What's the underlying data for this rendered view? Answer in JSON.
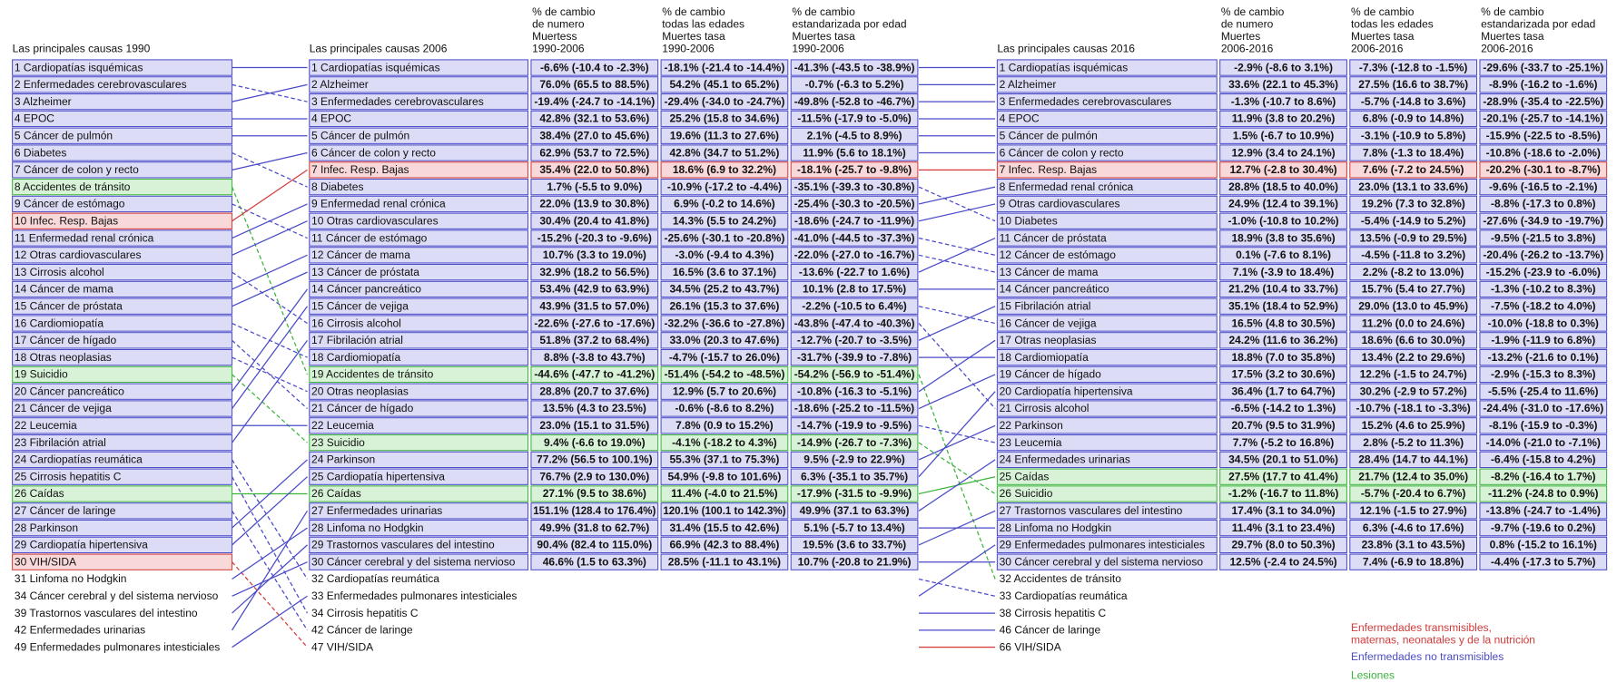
{
  "lists": [
    {
      "title": "Las principales causas 1990",
      "items": [
        {
          "label": "1 Cardiopatías isquémicas",
          "group": 1
        },
        {
          "label": "2 Enfermedades cerebrovasculares",
          "group": 1
        },
        {
          "label": "3 Alzheimer",
          "group": 1
        },
        {
          "label": "4 EPOC",
          "group": 1
        },
        {
          "label": "5 Cáncer de pulmón",
          "group": 1
        },
        {
          "label": "6 Diabetes",
          "group": 1
        },
        {
          "label": "7 Cáncer de colon y recto",
          "group": 1
        },
        {
          "label": "8 Accidentes de tránsito",
          "group": 2
        },
        {
          "label": "9 Cáncer de estómago",
          "group": 1
        },
        {
          "label": "10 Infec. Resp. Bajas",
          "group": 0
        },
        {
          "label": "11 Enfermedad renal crónica",
          "group": 1
        },
        {
          "label": "12 Otras cardiovasculares",
          "group": 1
        },
        {
          "label": "13 Cirrosis alcohol",
          "group": 1
        },
        {
          "label": "14 Cáncer de mama",
          "group": 1
        },
        {
          "label": "15 Cáncer de próstata",
          "group": 1
        },
        {
          "label": "16 Cardiomiopatía",
          "group": 1
        },
        {
          "label": "17 Cáncer de hígado",
          "group": 1
        },
        {
          "label": "18 Otras neoplasias",
          "group": 1
        },
        {
          "label": "19 Suicidio",
          "group": 2
        },
        {
          "label": "20 Cáncer pancreático",
          "group": 1
        },
        {
          "label": "21 Cáncer de vejiga",
          "group": 1
        },
        {
          "label": "22 Leucemia",
          "group": 1
        },
        {
          "label": "23 Fibrilación atrial",
          "group": 1
        },
        {
          "label": "24 Cardiopatías reumática",
          "group": 1
        },
        {
          "label": "25 Cirrosis hepatitis C",
          "group": 1
        },
        {
          "label": "26 Caídas",
          "group": 2
        },
        {
          "label": "27 Cáncer de laringe",
          "group": 1
        },
        {
          "label": "28 Parkinson",
          "group": 1
        },
        {
          "label": "29 Cardiopatía hipertensiva",
          "group": 1
        },
        {
          "label": "30 VIH/SIDA",
          "group": 0
        },
        {
          "label": "31 Linfoma no Hodgkin",
          "group": 1
        },
        {
          "label": "34 Cáncer cerebral y del sistema nervioso",
          "group": 1
        },
        {
          "label": "39 Trastornos vasculares del intestino",
          "group": 1
        },
        {
          "label": "42 Enfermedades urinarias",
          "group": 1
        },
        {
          "label": "49 Enfermedades pulmonares intesticiales",
          "group": 1
        }
      ]
    },
    {
      "title": "Las principales causas 2006",
      "items": [
        {
          "label": "1 Cardiopatías isquémicas",
          "group": 1
        },
        {
          "label": "2 Alzheimer",
          "group": 1
        },
        {
          "label": "3 Enfermedades cerebrovasculares",
          "group": 1
        },
        {
          "label": "4 EPOC",
          "group": 1
        },
        {
          "label": "5 Cáncer de pulmón",
          "group": 1
        },
        {
          "label": "6 Cáncer de colon y recto",
          "group": 1
        },
        {
          "label": "7 Infec. Resp. Bajas",
          "group": 0
        },
        {
          "label": "8 Diabetes",
          "group": 1
        },
        {
          "label": "9 Enfermedad renal crónica",
          "group": 1
        },
        {
          "label": "10 Otras cardiovasculares",
          "group": 1
        },
        {
          "label": "11 Cáncer de estómago",
          "group": 1
        },
        {
          "label": "12 Cáncer de mama",
          "group": 1
        },
        {
          "label": "13 Cáncer de próstata",
          "group": 1
        },
        {
          "label": "14 Cáncer pancreático",
          "group": 1
        },
        {
          "label": "15 Cáncer de vejiga",
          "group": 1
        },
        {
          "label": "16 Cirrosis alcohol",
          "group": 1
        },
        {
          "label": "17 Fibrilación atrial",
          "group": 1
        },
        {
          "label": "18 Cardiomiopatía",
          "group": 1
        },
        {
          "label": "19 Accidentes de tránsito",
          "group": 2
        },
        {
          "label": "20 Otras neoplasias",
          "group": 1
        },
        {
          "label": "21 Cáncer de hígado",
          "group": 1
        },
        {
          "label": "22 Leucemia",
          "group": 1
        },
        {
          "label": "23 Suicidio",
          "group": 2
        },
        {
          "label": "24 Parkinson",
          "group": 1
        },
        {
          "label": "25 Cardiopatía hipertensiva",
          "group": 1
        },
        {
          "label": "26 Caídas",
          "group": 2
        },
        {
          "label": "27 Enfermedades urinarias",
          "group": 1
        },
        {
          "label": "28 Linfoma no Hodgkin",
          "group": 1
        },
        {
          "label": "29 Trastornos vasculares del intestino",
          "group": 1
        },
        {
          "label": "30 Cáncer cerebral y del sistema nervioso",
          "group": 1
        },
        {
          "label": "32 Cardiopatías reumática",
          "group": 1
        },
        {
          "label": "33 Enfermedades pulmonares intesticiales",
          "group": 1
        },
        {
          "label": "34 Cirrosis hepatitis C",
          "group": 1
        },
        {
          "label": "42 Cáncer de laringe",
          "group": 1
        },
        {
          "label": "47 VIH/SIDA",
          "group": 0
        }
      ]
    },
    {
      "title": "Las principales causas 2016",
      "items": [
        {
          "label": "1 Cardiopatías isquémicas",
          "group": 1
        },
        {
          "label": "2 Alzheimer",
          "group": 1
        },
        {
          "label": "3 Enfermedades cerebrovasculares",
          "group": 1
        },
        {
          "label": "4 EPOC",
          "group": 1
        },
        {
          "label": "5 Cáncer de pulmón",
          "group": 1
        },
        {
          "label": "6 Cáncer de colon y recto",
          "group": 1
        },
        {
          "label": "7 Infec. Resp. Bajas",
          "group": 0
        },
        {
          "label": "8 Enfermedad renal crónica",
          "group": 1
        },
        {
          "label": "9 Otras cardiovasculares",
          "group": 1
        },
        {
          "label": "10 Diabetes",
          "group": 1
        },
        {
          "label": "11 Cáncer de próstata",
          "group": 1
        },
        {
          "label": "12 Cáncer de estómago",
          "group": 1
        },
        {
          "label": "13 Cáncer de mama",
          "group": 1
        },
        {
          "label": "14 Cáncer pancreático",
          "group": 1
        },
        {
          "label": "15 Fibrilación atrial",
          "group": 1
        },
        {
          "label": "16 Cáncer de vejiga",
          "group": 1
        },
        {
          "label": "17 Otras neoplasias",
          "group": 1
        },
        {
          "label": "18 Cardiomiopatía",
          "group": 1
        },
        {
          "label": "19 Cáncer de hígado",
          "group": 1
        },
        {
          "label": "20 Cardiopatía hipertensiva",
          "group": 1
        },
        {
          "label": "21 Cirrosis alcohol",
          "group": 1
        },
        {
          "label": "22 Parkinson",
          "group": 1
        },
        {
          "label": "23 Leucemia",
          "group": 1
        },
        {
          "label": "24 Enfermedades urinarias",
          "group": 1
        },
        {
          "label": "25 Caídas",
          "group": 2
        },
        {
          "label": "26 Suicidio",
          "group": 2
        },
        {
          "label": "27 Trastornos vasculares del intestino",
          "group": 1
        },
        {
          "label": "28 Linfoma no Hodgkin",
          "group": 1
        },
        {
          "label": "29 Enfermedades pulmonares intesticiales",
          "group": 1
        },
        {
          "label": "30 Cáncer cerebral y del sistema nervioso",
          "group": 1
        },
        {
          "label": "32 Accidentes de tránsito",
          "group": 2
        },
        {
          "label": "33 Cardiopatías reumática",
          "group": 1
        },
        {
          "label": "38 Cirrosis hepatitis C",
          "group": 1
        },
        {
          "label": "46 Cáncer de laringe",
          "group": 1
        },
        {
          "label": "66 VIH/SIDA",
          "group": 0
        }
      ]
    }
  ],
  "tables": [
    {
      "header": [
        [
          "% de cambio",
          "de numero",
          "Muertess",
          "1990-2006"
        ],
        [
          "% de cambio",
          "todas las edades",
          "Muertes tasa",
          "1990-2006"
        ],
        [
          "% de cambio",
          "estandarizada por edad",
          "Muertes tasa",
          "1990-2006"
        ]
      ],
      "rows": [
        [
          "-6.6% (-10.4 to -2.3%)",
          "-18.1% (-21.4 to -14.4%)",
          "-41.3% (-43.5 to -38.9%)"
        ],
        [
          "76.0% (65.5 to 88.5%)",
          "54.2% (45.1 to 65.2%)",
          "-0.7% (-6.3 to 5.2%)"
        ],
        [
          "-19.4% (-24.7 to -14.1%)",
          "-29.4% (-34.0 to -24.7%)",
          "-49.8% (-52.8 to -46.7%)"
        ],
        [
          "42.8% (32.1 to 53.6%)",
          "25.2% (15.8 to 34.6%)",
          "-11.5% (-17.9 to -5.0%)"
        ],
        [
          "38.4% (27.0 to 45.6%)",
          "19.6% (11.3 to 27.6%)",
          "2.1% (-4.5 to 8.9%)"
        ],
        [
          "62.9% (53.7 to 72.5%)",
          "42.8% (34.7 to 51.2%)",
          "11.9% (5.6 to 18.1%)"
        ],
        [
          "35.4% (22.0 to 50.8%)",
          "18.6% (6.9 to 32.2%)",
          "-18.1% (-25.7 to -9.8%)"
        ],
        [
          "1.7% (-5.5 to 9.0%)",
          "-10.9% (-17.2 to -4.4%)",
          "-35.1% (-39.3 to -30.8%)"
        ],
        [
          "22.0% (13.9 to 30.8%)",
          "6.9% (-0.2 to 14.6%)",
          "-25.4% (-30.3 to -20.5%)"
        ],
        [
          "30.4% (20.4 to 41.8%)",
          "14.3% (5.5 to 24.2%)",
          "-18.6% (-24.7 to -11.9%)"
        ],
        [
          "-15.2% (-20.3 to -9.6%)",
          "-25.6% (-30.1 to -20.8%)",
          "-41.0% (-44.5 to -37.3%)"
        ],
        [
          "10.7% (3.3 to 19.0%)",
          "-3.0% (-9.4 to 4.3%)",
          "-22.0% (-27.0 to -16.7%)"
        ],
        [
          "32.9% (18.2 to 56.5%)",
          "16.5% (3.6 to 37.1%)",
          "-13.6% (-22.7 to 1.6%)"
        ],
        [
          "53.4% (42.9 to 63.9%)",
          "34.5% (25.2 to 43.7%)",
          "10.1% (2.8 to 17.5%)"
        ],
        [
          "43.9% (31.5 to 57.0%)",
          "26.1% (15.3 to 37.6%)",
          "-2.2% (-10.5 to 6.4%)"
        ],
        [
          "-22.6% (-27.6 to -17.6%)",
          "-32.2% (-36.6 to -27.8%)",
          "-43.8% (-47.4 to -40.3%)"
        ],
        [
          "51.8% (37.2 to 68.4%)",
          "33.0% (20.3 to 47.6%)",
          "-12.7% (-20.7 to -3.5%)"
        ],
        [
          "8.8% (-3.8 to 43.7%)",
          "-4.7% (-15.7 to 26.0%)",
          "-31.7% (-39.9 to -7.8%)"
        ],
        [
          "-44.6% (-47.7 to -41.2%)",
          "-51.4% (-54.2 to -48.5%)",
          "-54.2% (-56.9 to -51.4%)"
        ],
        [
          "28.8% (20.7 to 37.6%)",
          "12.9% (5.7 to 20.6%)",
          "-10.8% (-16.3 to -5.1%)"
        ],
        [
          "13.5% (4.3 to 23.5%)",
          "-0.6% (-8.6 to 8.2%)",
          "-18.6% (-25.2 to -11.5%)"
        ],
        [
          "23.0% (15.1 to 31.5%)",
          "7.8% (0.9 to 15.2%)",
          "-14.7% (-19.9 to -9.5%)"
        ],
        [
          "9.4% (-6.6 to 19.0%)",
          "-4.1% (-18.2 to 4.3%)",
          "-14.9% (-26.7 to -7.3%)"
        ],
        [
          "77.2% (56.5 to 100.1%)",
          "55.3% (37.1 to 75.3%)",
          "9.5% (-2.9 to 22.9%)"
        ],
        [
          "76.7% (2.9 to 130.0%)",
          "54.9% (-9.8 to 101.6%)",
          "6.3% (-35.1 to 35.7%)"
        ],
        [
          "27.1% (9.5 to 38.6%)",
          "11.4% (-4.0 to 21.5%)",
          "-17.9% (-31.5 to -9.9%)"
        ],
        [
          "151.1% (128.4 to 176.4%)",
          "120.1% (100.1 to 142.3%)",
          "49.9% (37.1 to 63.3%)"
        ],
        [
          "49.9% (31.8 to 62.7%)",
          "31.4% (15.5 to 42.6%)",
          "5.1% (-5.7 to 13.4%)"
        ],
        [
          "90.4% (82.4 to 115.0%)",
          "66.9% (42.3 to 88.4%)",
          "19.5% (3.6 to 33.7%)"
        ],
        [
          "46.6% (1.5 to 63.3%)",
          "28.5% (-11.1 to 43.1%)",
          "10.7% (-20.8 to 21.9%)"
        ]
      ]
    },
    {
      "header": [
        [
          "% de cambio",
          "de numero",
          "Muertes",
          "2006-2016"
        ],
        [
          "% de cambio",
          "todas les edades",
          "Muertes tasa",
          "2006-2016"
        ],
        [
          "% de cambio",
          "estandarizada por edad",
          "Muertes tasa",
          "2006-2016"
        ]
      ],
      "rows": [
        [
          "-2.9% (-8.6 to 3.1%)",
          "-7.3% (-12.8 to -1.5%)",
          "-29.6% (-33.7 to -25.1%)"
        ],
        [
          "33.6% (22.1 to 45.3%)",
          "27.5% (16.6 to 38.7%)",
          "-8.9% (-16.2 to -1.6%)"
        ],
        [
          "-1.3% (-10.7 to 8.6%)",
          "-5.7% (-14.8 to 3.6%)",
          "-28.9% (-35.4 to -22.5%)"
        ],
        [
          "11.9% (3.8 to 20.2%)",
          "6.8% (-0.9 to 14.8%)",
          "-20.1% (-25.7 to -14.1%)"
        ],
        [
          "1.5% (-6.7 to 10.9%)",
          "-3.1% (-10.9 to 5.8%)",
          "-15.9% (-22.5 to -8.5%)"
        ],
        [
          "12.9% (3.4 to 24.1%)",
          "7.8% (-1.3 to 18.4%)",
          "-10.8% (-18.6 to -2.0%)"
        ],
        [
          "12.7% (-2.8 to 30.4%)",
          "7.6% (-7.2 to 24.5%)",
          "-20.2% (-30.1 to -8.7%)"
        ],
        [
          "28.8% (18.5 to 40.0%)",
          "23.0% (13.1 to 33.6%)",
          "-9.6% (-16.5 to -2.1%)"
        ],
        [
          "24.9% (12.4 to 39.1%)",
          "19.2% (7.3 to 32.8%)",
          "-8.8% (-17.3 to 0.8%)"
        ],
        [
          "-1.0% (-10.8 to 10.2%)",
          "-5.4% (-14.9 to 5.2%)",
          "-27.6% (-34.9 to -19.7%)"
        ],
        [
          "18.9% (3.8 to 35.6%)",
          "13.5% (-0.9 to 29.5%)",
          "-9.5% (-21.5 to 3.8%)"
        ],
        [
          "0.1% (-7.6 to 8.1%)",
          "-4.5% (-11.8 to 3.2%)",
          "-20.4% (-26.2 to -13.7%)"
        ],
        [
          "7.1% (-3.9 to 18.4%)",
          "2.2% (-8.2 to 13.0%)",
          "-15.2% (-23.9 to -6.0%)"
        ],
        [
          "21.2% (10.4 to 33.7%)",
          "15.7% (5.4 to 27.7%)",
          "-1.3% (-10.2 to 8.3%)"
        ],
        [
          "35.1% (18.4 to 52.9%)",
          "29.0% (13.0 to 45.9%)",
          "-7.5% (-18.2 to 4.0%)"
        ],
        [
          "16.5% (4.8 to 30.5%)",
          "11.2% (0.0 to 24.6%)",
          "-10.0% (-18.8 to 0.3%)"
        ],
        [
          "24.2% (11.6 to 36.2%)",
          "18.6% (6.6 to 30.0%)",
          "-1.9% (-11.9 to 6.8%)"
        ],
        [
          "18.8% (7.0 to 35.8%)",
          "13.4% (2.2 to 29.6%)",
          "-13.2% (-21.6 to 0.1%)"
        ],
        [
          "17.5% (3.2 to 30.6%)",
          "12.2% (-1.5 to 24.7%)",
          "-2.9% (-15.3 to 8.3%)"
        ],
        [
          "36.4% (1.7 to 64.7%)",
          "30.2% (-2.9 to 57.2%)",
          "-5.5% (-25.4 to 11.6%)"
        ],
        [
          "-6.5% (-14.2 to 1.3%)",
          "-10.7% (-18.1 to -3.3%)",
          "-24.4% (-31.0 to -17.6%)"
        ],
        [
          "20.7% (9.5 to 31.9%)",
          "15.2% (4.6 to 25.9%)",
          "-8.1% (-15.9 to -0.3%)"
        ],
        [
          "7.7% (-5.2 to 16.8%)",
          "2.8% (-5.2 to 11.3%)",
          "-14.0% (-21.0 to -7.1%)"
        ],
        [
          "34.5% (20.1 to 51.0%)",
          "28.4% (14.7 to 44.1%)",
          "-6.4% (-15.8 to 4.2%)"
        ],
        [
          "27.5% (17.7 to 41.4%)",
          "21.7% (12.4 to 35.0%)",
          "-8.2% (-16.4 to 1.7%)"
        ],
        [
          "-1.2% (-16.7 to 11.8%)",
          "-5.7% (-20.4 to 6.7%)",
          "-11.2% (-24.8 to 0.9%)"
        ],
        [
          "17.4% (3.1 to 34.0%)",
          "12.1% (-1.5 to 27.9%)",
          "-13.8% (-24.7 to -1.4%)"
        ],
        [
          "11.4% (3.1 to 23.4%)",
          "6.3% (-4.6 to 17.6%)",
          "-9.7% (-19.6 to 0.2%)"
        ],
        [
          "29.7% (8.0 to 50.3%)",
          "23.8% (3.1 to 43.5%)",
          "0.8% (-15.2 to 16.1%)"
        ],
        [
          "12.5% (-2.4 to 24.5%)",
          "7.4% (-6.9 to 18.8%)",
          "-4.4% (-17.3 to 5.7%)"
        ]
      ]
    }
  ],
  "legend": [
    {
      "label": [
        "Enfermedades transmisibles,",
        "maternas, neonatales y de la nutrición"
      ],
      "color": "#d43a3a",
      "fill": "#f8d8d8"
    },
    {
      "label": [
        "Enfermedades no transmisibles"
      ],
      "color": "#4a4ac8",
      "fill": "#dcdcf6"
    },
    {
      "label": [
        "Lesiones"
      ],
      "color": "#3cb43c",
      "fill": "#d8f2d8"
    }
  ]
}
